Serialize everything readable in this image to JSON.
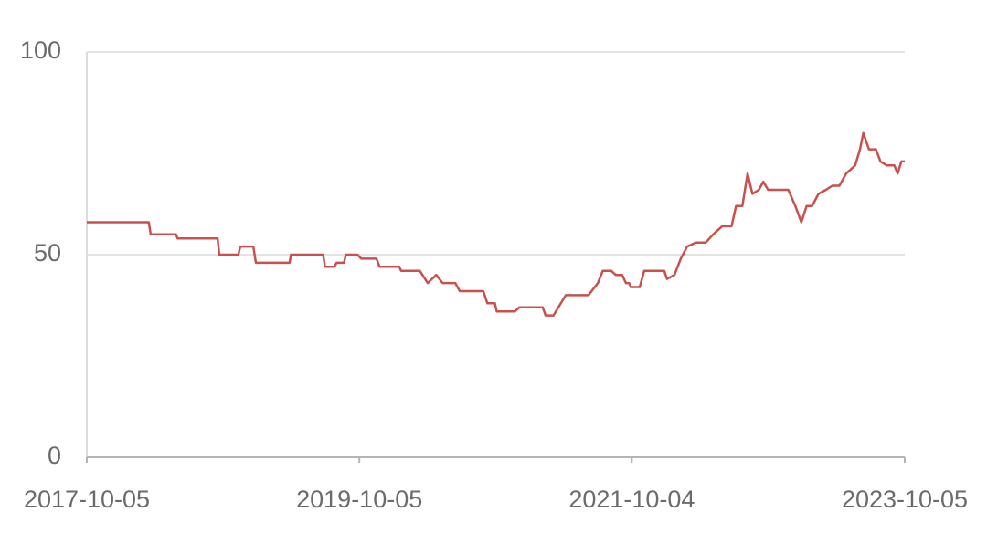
{
  "chart_data": {
    "type": "line",
    "color": "#c9504c",
    "grid": true,
    "ylim": [
      0,
      100
    ],
    "yticks": [
      0,
      50,
      100
    ],
    "xlim": [
      "2017-10-05",
      "2023-10-05"
    ],
    "xticks": [
      "2017-10-05",
      "2019-10-05",
      "2021-10-04",
      "2023-10-05"
    ],
    "x": [
      "2017-10-05",
      "2018-03-20",
      "2018-03-25",
      "2018-06-01",
      "2018-06-05",
      "2018-09-20",
      "2018-09-25",
      "2018-11-15",
      "2018-11-20",
      "2018-12-25",
      "2019-01-01",
      "2019-04-01",
      "2019-04-05",
      "2019-06-30",
      "2019-07-05",
      "2019-07-30",
      "2019-08-05",
      "2019-08-25",
      "2019-08-30",
      "2019-09-30",
      "2019-10-10",
      "2019-11-20",
      "2019-11-28",
      "2020-01-20",
      "2020-01-25",
      "2020-03-15",
      "2020-04-05",
      "2020-04-28",
      "2020-05-15",
      "2020-06-18",
      "2020-06-30",
      "2020-09-01",
      "2020-09-12",
      "2020-10-02",
      "2020-10-07",
      "2020-11-25",
      "2020-12-07",
      "2021-02-07",
      "2021-02-15",
      "2021-03-08",
      "2021-04-10",
      "2021-06-10",
      "2021-07-05",
      "2021-07-18",
      "2021-08-10",
      "2021-08-22",
      "2021-09-08",
      "2021-09-18",
      "2021-09-27",
      "2021-10-01",
      "2021-10-25",
      "2021-11-06",
      "2021-12-30",
      "2022-01-06",
      "2022-01-26",
      "2022-02-12",
      "2022-03-01",
      "2022-03-25",
      "2022-04-20",
      "2022-05-10",
      "2022-06-03",
      "2022-06-28",
      "2022-07-10",
      "2022-07-27",
      "2022-08-10",
      "2022-08-23",
      "2022-09-09",
      "2022-09-21",
      "2022-10-04",
      "2022-11-27",
      "2022-12-16",
      "2023-01-01",
      "2023-01-15",
      "2023-01-30",
      "2023-02-16",
      "2023-03-08",
      "2023-03-25",
      "2023-04-13",
      "2023-05-01",
      "2023-05-25",
      "2023-06-07",
      "2023-06-16",
      "2023-07-01",
      "2023-07-20",
      "2023-08-01",
      "2023-08-18",
      "2023-09-07",
      "2023-09-16",
      "2023-09-26",
      "2023-10-05"
    ],
    "values": [
      58,
      58,
      55,
      55,
      54,
      54,
      50,
      50,
      52,
      52,
      48,
      48,
      50,
      50,
      47,
      47,
      48,
      48,
      50,
      50,
      49,
      49,
      47,
      47,
      46,
      46,
      43,
      45,
      43,
      43,
      41,
      41,
      38,
      38,
      36,
      36,
      37,
      37,
      35,
      35,
      40,
      40,
      43,
      46,
      46,
      45,
      45,
      43,
      43,
      42,
      42,
      46,
      46,
      44,
      45,
      49,
      52,
      53,
      53,
      55,
      57,
      57,
      62,
      62,
      70,
      65,
      66,
      68,
      66,
      66,
      62,
      58,
      62,
      62,
      65,
      66,
      67,
      67,
      70,
      72,
      76,
      80,
      76,
      76,
      73,
      72,
      72,
      70,
      73,
      73
    ]
  }
}
